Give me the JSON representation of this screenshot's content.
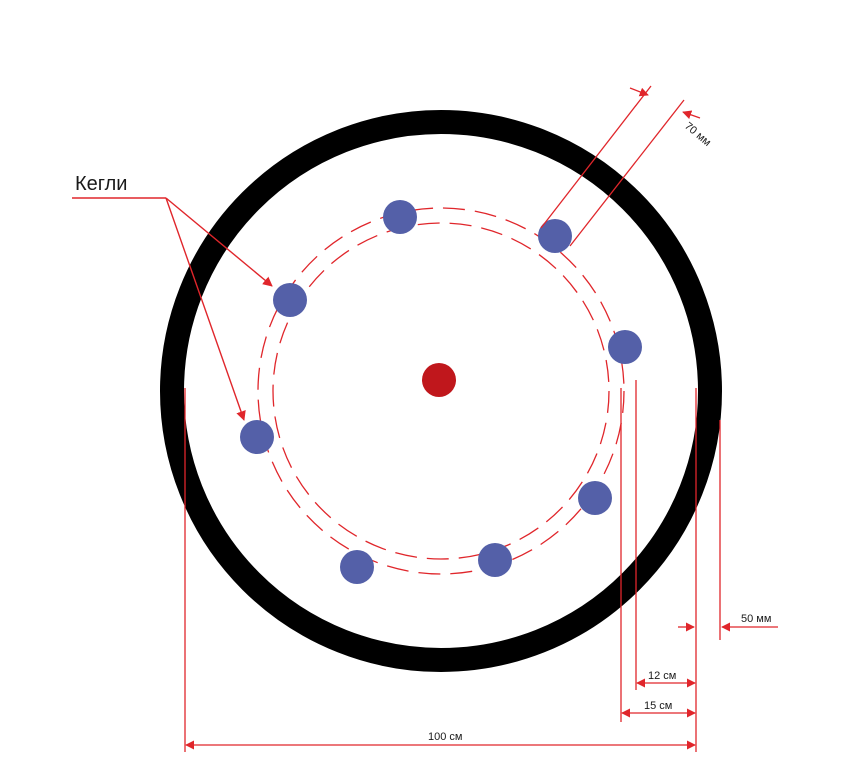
{
  "labels": {
    "pins": "Кегли",
    "pin_gap": "70 мм",
    "border_width": "50 мм",
    "inner_dash_offset": "12 см",
    "outer_dash_offset": "15 см",
    "diameter": "100 см"
  },
  "colors": {
    "ring": "#000000",
    "pin": "#5460a8",
    "center": "#c0171c",
    "annotation": "#e0262b",
    "text": "#1a1a1a"
  }
}
